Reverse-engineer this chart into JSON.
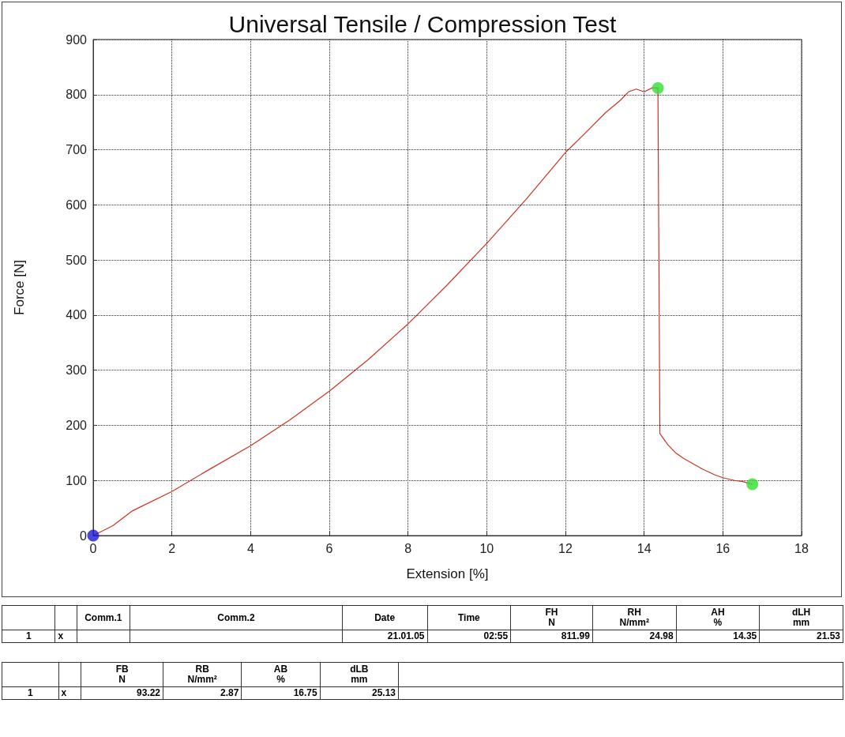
{
  "chart_data": {
    "type": "line",
    "title": "Universal Tensile / Compression Test",
    "xlabel": "Extension [%]",
    "ylabel": "Force [N]",
    "xlim": [
      0,
      18
    ],
    "xticks": [
      0,
      2,
      4,
      6,
      8,
      10,
      12,
      14,
      16,
      18
    ],
    "ylim": [
      0,
      900
    ],
    "yticks": [
      0,
      100,
      200,
      300,
      400,
      500,
      600,
      700,
      800,
      900
    ],
    "grid": true,
    "series": [
      {
        "color": "#cc3322",
        "marker": "none",
        "line_style": "solid",
        "x": [
          0,
          0.5,
          1,
          2,
          3,
          4,
          5,
          6,
          7,
          8,
          9,
          10,
          11,
          12,
          12.5,
          13,
          13.4,
          13.6,
          13.8,
          14,
          14.2,
          14.35,
          14.4,
          14.6,
          14.8,
          15,
          15.3,
          15.5,
          15.8,
          16,
          16.3,
          16.5,
          16.75
        ],
        "values": [
          0,
          18,
          45,
          80,
          122,
          163,
          210,
          262,
          320,
          384,
          455,
          530,
          610,
          695,
          730,
          766,
          790,
          805,
          810,
          805,
          812,
          812,
          185,
          165,
          150,
          140,
          128,
          120,
          110,
          105,
          100,
          98,
          93
        ]
      },
      {
        "type": "scatter",
        "marker": "circle",
        "x": [
          0,
          14.35,
          16.75
        ],
        "values": [
          0,
          811.99,
          93.22
        ],
        "colors": [
          "#1a1ad6",
          "#33dd33",
          "#33dd33"
        ]
      }
    ],
    "annotations": [
      "Comm.1",
      "Comm.2",
      "Date",
      "Time",
      "FH\nN",
      "RH\nN/mm²",
      "AH\n%",
      "dLH\nmm",
      "1",
      "x",
      "21.01.05",
      "02:55",
      "811.99",
      "24.98",
      "14.35",
      "21.53",
      "FB\nN",
      "RB\nN/mm²",
      "AB\n%",
      "dLB\nmm",
      "1",
      "x",
      "93.22",
      "2.87",
      "16.75",
      "25.13"
    ]
  }
}
